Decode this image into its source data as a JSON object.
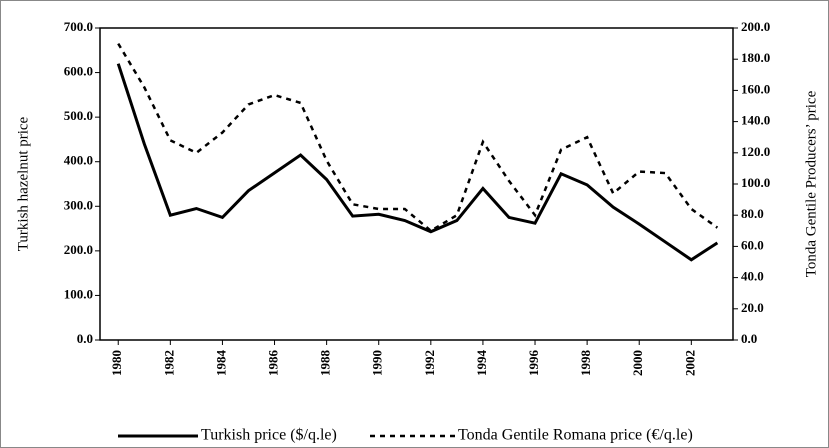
{
  "chart_data": {
    "type": "line",
    "y_label": "Turkish hazelnut price",
    "y2_label": "Tonda Gentile Producers’ price",
    "x": [
      1980,
      1981,
      1982,
      1983,
      1984,
      1985,
      1986,
      1987,
      1988,
      1989,
      1990,
      1991,
      1992,
      1993,
      1994,
      1995,
      1996,
      1997,
      1998,
      1999,
      2000,
      2001,
      2002,
      2003
    ],
    "xlim": [
      1979.3,
      2003.6
    ],
    "xticks": [
      1980,
      1982,
      1984,
      1986,
      1988,
      1990,
      1992,
      1994,
      1996,
      1998,
      2000,
      2002
    ],
    "ylim": [
      0,
      700
    ],
    "yticks": [
      {
        "value": 0,
        "label": "0.0"
      },
      {
        "value": 100,
        "label": "100.0"
      },
      {
        "value": 200,
        "label": "200.0"
      },
      {
        "value": 300,
        "label": "300.0"
      },
      {
        "value": 400,
        "label": "400.0"
      },
      {
        "value": 500,
        "label": "500.0"
      },
      {
        "value": 600,
        "label": "600.0"
      },
      {
        "value": 700,
        "label": "700.0"
      }
    ],
    "y2lim": [
      0,
      200
    ],
    "y2ticks": [
      {
        "value": 0,
        "label": "0.0"
      },
      {
        "value": 20,
        "label": "20.0"
      },
      {
        "value": 40,
        "label": "40.0"
      },
      {
        "value": 60,
        "label": "60.0"
      },
      {
        "value": 80,
        "label": "80.0"
      },
      {
        "value": 100,
        "label": "100.0"
      },
      {
        "value": 120,
        "label": "120.0"
      },
      {
        "value": 140,
        "label": "140.0"
      },
      {
        "value": 160,
        "label": "160.0"
      },
      {
        "value": 180,
        "label": "180.0"
      },
      {
        "value": 200,
        "label": "200.0"
      }
    ],
    "grid": false,
    "legend": "bottom",
    "series": [
      {
        "name": "Turkish price ($/q.le)",
        "color": "#000000",
        "line_style": "solid",
        "axis": "y",
        "values": [
          620,
          440,
          280,
          295,
          275,
          335,
          375,
          415,
          360,
          278,
          282,
          268,
          243,
          268,
          340,
          275,
          262,
          373,
          348,
          298,
          260,
          220,
          180,
          218
        ]
      },
      {
        "name": "Tonda Gentile Romana price (€/q.le)",
        "color": "#000000",
        "line_style": "dashed",
        "axis": "y2",
        "values": [
          190,
          162,
          128,
          120,
          133,
          151,
          157,
          152,
          115,
          87,
          84,
          84,
          70,
          80,
          127,
          102,
          80,
          122,
          130,
          94,
          108,
          107,
          84,
          72
        ]
      }
    ]
  }
}
